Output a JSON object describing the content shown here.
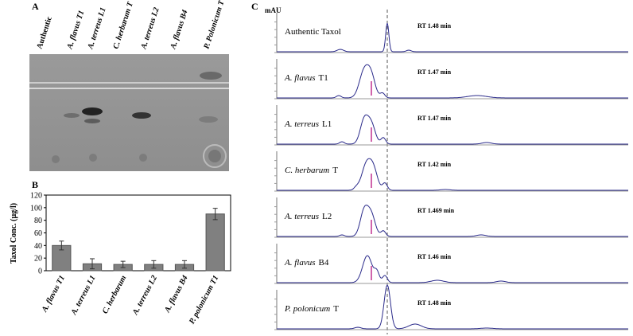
{
  "panel_a": {
    "label": "A",
    "lanes": [
      "Authentic",
      "A. flavus T1",
      "A. terreus L1",
      "C. herbarum T",
      "A. terreus L2",
      "A. flavus B4",
      "P. Polonicum T"
    ]
  },
  "chart_data": {
    "type": "bar",
    "label": "B",
    "ylabel": "Taxol Conc. (µg/l)",
    "categories": [
      "A. flavus T1",
      "A. terreus L1",
      "C. herbarum",
      "A. terreus L2",
      "A. flavus B4",
      "P. polonicum T1"
    ],
    "values": [
      40,
      11,
      10,
      10,
      10,
      90
    ],
    "errors": [
      7,
      8,
      5,
      6,
      6,
      9
    ],
    "color": "#808080",
    "ylim": [
      0,
      120
    ],
    "yticks": [
      0,
      20,
      40,
      60,
      80,
      100,
      120
    ]
  },
  "panel_c": {
    "label": "C",
    "ylabel": "mAU",
    "traces": [
      {
        "name": "Authentic Taxol",
        "rt": "RT 1.48 min"
      },
      {
        "species": "A. flavus",
        "strain": "T1",
        "rt": "RT 1.47 min"
      },
      {
        "species": "A. terreus",
        "strain": "L1",
        "rt": "RT 1.47 min"
      },
      {
        "species": "C. herbarum",
        "strain": "T",
        "rt": "RT 1.42 min"
      },
      {
        "species": "A. terreus",
        "strain": "L2",
        "rt": "RT 1.469 min"
      },
      {
        "species": "A. flavus",
        "strain": "B4",
        "rt": "RT 1.46 min"
      },
      {
        "species": "P. polonicum",
        "strain": "T",
        "rt": "RT 1.48 min"
      }
    ]
  }
}
